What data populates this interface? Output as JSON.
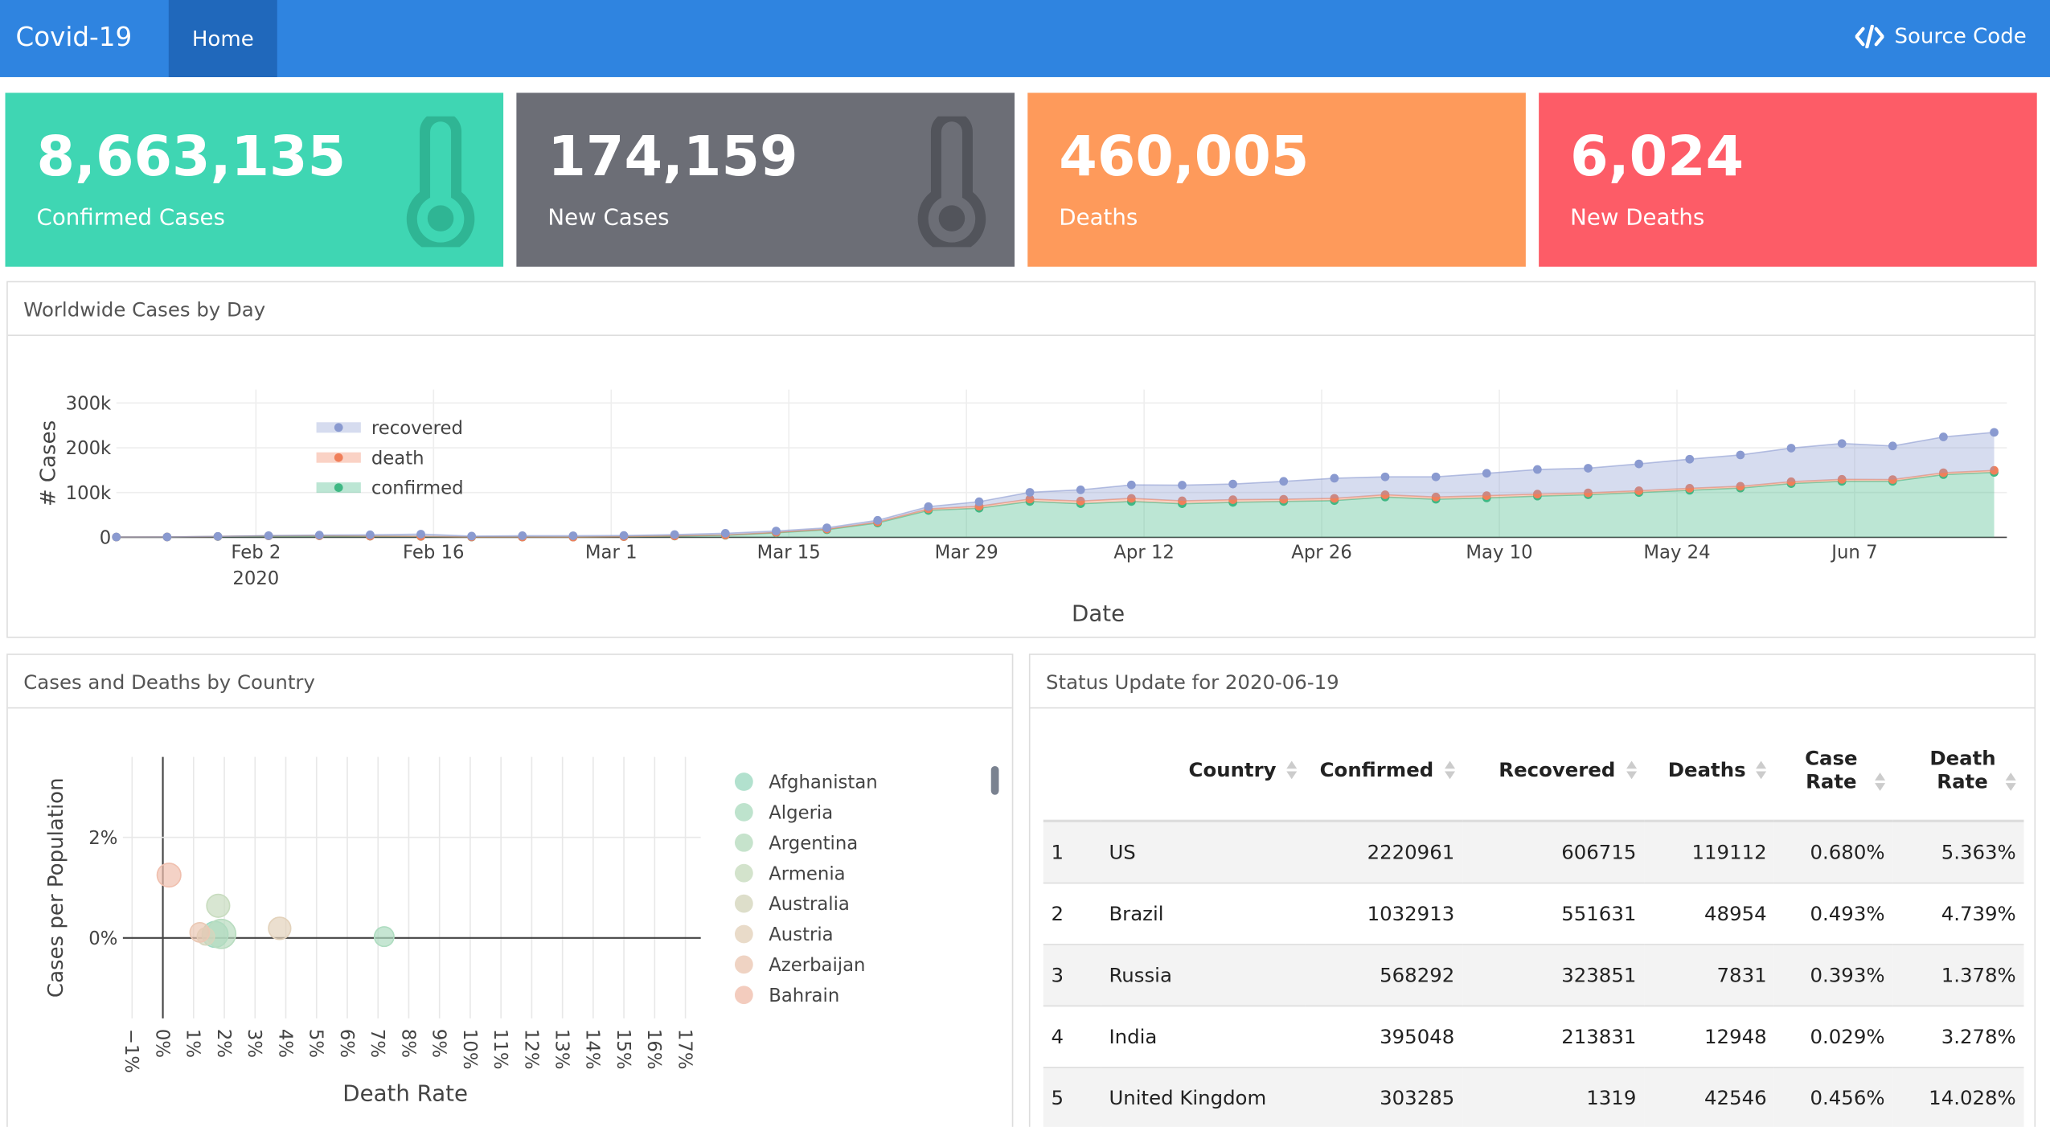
{
  "navbar": {
    "brand": "Covid-19",
    "home": "Home",
    "source": "Source Code"
  },
  "cards": [
    {
      "value": "8,663,135",
      "label": "Confirmed Cases"
    },
    {
      "value": "174,159",
      "label": "New Cases"
    },
    {
      "value": "460,005",
      "label": "Deaths"
    },
    {
      "value": "6,024",
      "label": "New Deaths"
    }
  ],
  "chart_data": [
    {
      "type": "area",
      "title": "Worldwide Cases by Day",
      "x_label": "Date",
      "y_label": "# Cases",
      "x": [
        "2020-01-22",
        "2020-01-26",
        "2020-01-30",
        "2020-02-03",
        "2020-02-07",
        "2020-02-11",
        "2020-02-15",
        "2020-02-19",
        "2020-02-23",
        "2020-02-27",
        "2020-03-02",
        "2020-03-06",
        "2020-03-10",
        "2020-03-14",
        "2020-03-18",
        "2020-03-22",
        "2020-03-26",
        "2020-03-30",
        "2020-04-03",
        "2020-04-07",
        "2020-04-11",
        "2020-04-15",
        "2020-04-19",
        "2020-04-23",
        "2020-04-27",
        "2020-05-01",
        "2020-05-05",
        "2020-05-09",
        "2020-05-13",
        "2020-05-17",
        "2020-05-21",
        "2020-05-25",
        "2020-05-29",
        "2020-06-02",
        "2020-06-06",
        "2020-06-10",
        "2020-06-14",
        "2020-06-18"
      ],
      "series": [
        {
          "name": "confirmed",
          "color": "#3fb884",
          "values": [
            600,
            700,
            1800,
            3200,
            3400,
            2500,
            2000,
            600,
            500,
            400,
            1500,
            2800,
            4500,
            10000,
            17000,
            32000,
            60000,
            65000,
            80000,
            75000,
            80000,
            75000,
            78000,
            80000,
            82000,
            90000,
            85000,
            88000,
            92000,
            95000,
            100000,
            105000,
            110000,
            120000,
            125000,
            125000,
            140000,
            145000
          ]
        },
        {
          "name": "death",
          "color": "#f07f5a",
          "values": [
            20,
            40,
            50,
            60,
            80,
            100,
            120,
            100,
            50,
            50,
            80,
            300,
            500,
            1000,
            1200,
            2000,
            3500,
            4500,
            5500,
            6000,
            7000,
            6500,
            6000,
            5000,
            5000,
            5000,
            5000,
            5000,
            4500,
            4300,
            4000,
            4500,
            4000,
            4200,
            4500,
            4000,
            4200,
            4500
          ]
        },
        {
          "name": "recovered",
          "color": "#8a9ad0",
          "values": [
            30,
            60,
            200,
            400,
            1500,
            3000,
            5000,
            2000,
            3000,
            3000,
            2500,
            3000,
            4000,
            3000,
            3000,
            4000,
            5000,
            10000,
            15000,
            25000,
            30000,
            35000,
            35000,
            40000,
            45000,
            40000,
            45000,
            50000,
            55000,
            55000,
            60000,
            65000,
            70000,
            75000,
            80000,
            75000,
            80000,
            85000
          ]
        }
      ],
      "xlim": [
        "2020-01-22",
        "2020-06-19"
      ],
      "xticks": [
        {
          "value": "2020-02-02",
          "label": "Feb 2"
        },
        {
          "value": "2020-02-16",
          "label": "Feb 16"
        },
        {
          "value": "2020-03-01",
          "label": "Mar 1"
        },
        {
          "value": "2020-03-15",
          "label": "Mar 15"
        },
        {
          "value": "2020-03-29",
          "label": "Mar 29"
        },
        {
          "value": "2020-04-12",
          "label": "Apr 12"
        },
        {
          "value": "2020-04-26",
          "label": "Apr 26"
        },
        {
          "value": "2020-05-10",
          "label": "May 10"
        },
        {
          "value": "2020-05-24",
          "label": "May 24"
        },
        {
          "value": "2020-06-07",
          "label": "Jun 7"
        }
      ],
      "x_year_label": "2020",
      "ylim": [
        0,
        330000
      ],
      "yticks": [
        0,
        {
          "value": 100000,
          "label": "100k"
        },
        {
          "value": 200000,
          "label": "200k"
        },
        {
          "value": 300000,
          "label": "300k"
        }
      ],
      "grid": true,
      "legend": "top-left"
    },
    {
      "type": "scatter",
      "title": "Cases and Deaths by Country",
      "x_label": "Death Rate",
      "y_label": "Cases per Population",
      "series": [
        {
          "name": "Afghanistan",
          "color": "#9fd9c2",
          "x": [
            1.7
          ],
          "values": [
            0.07
          ],
          "sizes": [
            27000
          ]
        },
        {
          "name": "Algeria",
          "color": "#aedcc0",
          "x": [
            7.2
          ],
          "values": [
            0.026
          ],
          "sizes": [
            11500
          ]
        },
        {
          "name": "Argentina",
          "color": "#b8dcbf",
          "x": [
            1.9
          ],
          "values": [
            0.08
          ],
          "sizes": [
            37500
          ]
        },
        {
          "name": "Armenia",
          "color": "#c8dcbf",
          "x": [
            1.8
          ],
          "values": [
            0.64
          ],
          "sizes": [
            19000
          ]
        },
        {
          "name": "Australia",
          "color": "#d5d6bd",
          "x": [
            1.4
          ],
          "values": [
            0.03
          ],
          "sizes": [
            7400
          ]
        },
        {
          "name": "Austria",
          "color": "#e3d2bb",
          "x": [
            3.8
          ],
          "values": [
            0.19
          ],
          "sizes": [
            17300
          ]
        },
        {
          "name": "Azerbaijan",
          "color": "#ebc8b4",
          "x": [
            1.2
          ],
          "values": [
            0.11
          ],
          "sizes": [
            11300
          ]
        },
        {
          "name": "Bahrain",
          "color": "#f0bfae",
          "x": [
            0.2
          ],
          "values": [
            1.25
          ],
          "sizes": [
            21000
          ]
        }
      ],
      "xlim": [
        -1.3,
        17.5
      ],
      "xticks": [
        {
          "value": -1,
          "label": "−1%"
        },
        {
          "value": 0,
          "label": "0%"
        },
        {
          "value": 1,
          "label": "1%"
        },
        {
          "value": 2,
          "label": "2%"
        },
        {
          "value": 3,
          "label": "3%"
        },
        {
          "value": 4,
          "label": "4%"
        },
        {
          "value": 5,
          "label": "5%"
        },
        {
          "value": 6,
          "label": "6%"
        },
        {
          "value": 7,
          "label": "7%"
        },
        {
          "value": 8,
          "label": "8%"
        },
        {
          "value": 9,
          "label": "9%"
        },
        {
          "value": 10,
          "label": "10%"
        },
        {
          "value": 11,
          "label": "11%"
        },
        {
          "value": 12,
          "label": "12%"
        },
        {
          "value": 13,
          "label": "13%"
        },
        {
          "value": 14,
          "label": "14%"
        },
        {
          "value": 15,
          "label": "15%"
        },
        {
          "value": 16,
          "label": "16%"
        },
        {
          "value": 17,
          "label": "17%"
        }
      ],
      "ylim": [
        -1.6,
        3.6
      ],
      "yticks": [
        {
          "value": 0,
          "label": "0%"
        },
        {
          "value": 2,
          "label": "2%"
        }
      ],
      "grid": true,
      "legend": "right"
    }
  ],
  "table": {
    "title": "Status Update for 2020-06-19",
    "headers": [
      "Country",
      "Confirmed",
      "Recovered",
      "Deaths",
      "Case Rate",
      "Death Rate"
    ],
    "rows": [
      [
        1,
        "US",
        2220961,
        606715,
        119112,
        "0.680%",
        "5.363%"
      ],
      [
        2,
        "Brazil",
        1032913,
        551631,
        48954,
        "0.493%",
        "4.739%"
      ],
      [
        3,
        "Russia",
        568292,
        323851,
        7831,
        "0.393%",
        "1.378%"
      ],
      [
        4,
        "India",
        395048,
        213831,
        12948,
        "0.029%",
        "3.278%"
      ],
      [
        5,
        "United Kingdom",
        303285,
        1319,
        42546,
        "0.456%",
        "14.028%"
      ]
    ]
  }
}
